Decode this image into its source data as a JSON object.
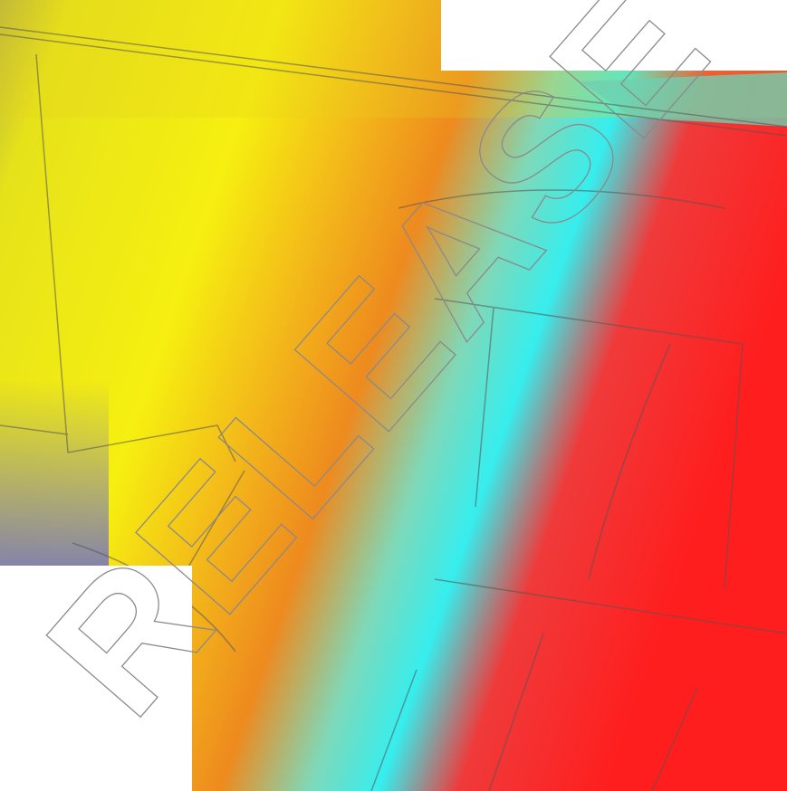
{
  "watermark": "RELEASE"
}
